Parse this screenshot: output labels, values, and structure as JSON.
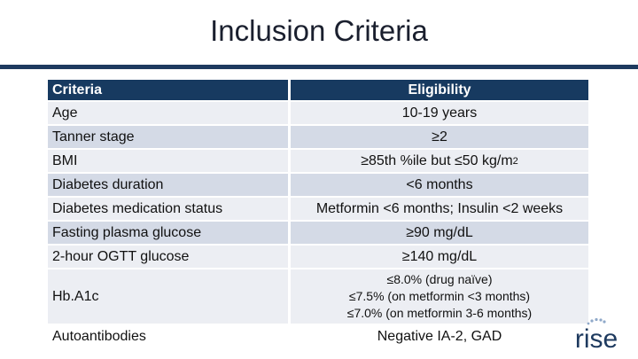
{
  "title": "Inclusion Criteria",
  "table": {
    "headers": [
      "Criteria",
      "Eligibility"
    ],
    "rows": [
      {
        "criteria": "Age",
        "eligibility": "10-19 years"
      },
      {
        "criteria": "Tanner stage",
        "eligibility": "≥2"
      },
      {
        "criteria": "BMI",
        "eligibility": "≥85th %ile but ≤50 kg/m",
        "sup": "2"
      },
      {
        "criteria": "Diabetes duration",
        "eligibility": "<6 months"
      },
      {
        "criteria": "Diabetes medication status",
        "eligibility": "Metformin <6 months; Insulin <2 weeks"
      },
      {
        "criteria": "Fasting plasma glucose",
        "eligibility": "≥90 mg/dL"
      },
      {
        "criteria": "2-hour OGTT glucose",
        "eligibility": "≥140 mg/dL"
      },
      {
        "criteria": "Hb.A1c",
        "eligibility_lines": [
          "≤8.0% (drug naïve)",
          "≤7.5% (on metformin <3 months)",
          "≤7.0% (on metformin 3-6 months)"
        ]
      },
      {
        "criteria": "Autoantibodies",
        "eligibility": "Negative IA-2, GAD"
      }
    ]
  },
  "logo": {
    "text": "rise",
    "color": "#1e3a5f",
    "accent": "#8fa9c9"
  },
  "colors": {
    "header_bg": "#173a60",
    "row_light": "#eceef3",
    "row_mid": "#d4dae6",
    "title_bar": "#1e3a5f"
  }
}
